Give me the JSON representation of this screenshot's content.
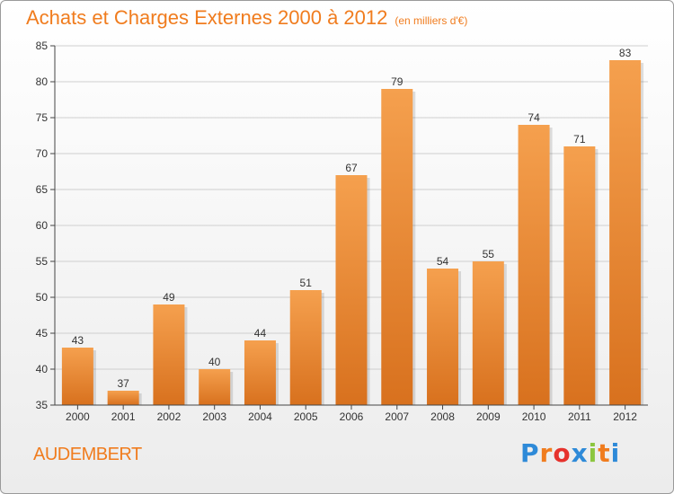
{
  "header": {
    "title": "Achats et Charges Externes 2000 à 2012",
    "subtitle": "(en milliers d'€)"
  },
  "place": "AUDEMBERT",
  "logo": {
    "text": "Proxiti",
    "colors": [
      "#2e8ad8",
      "#f07c1e",
      "#e6322c",
      "#2e8ad8",
      "#8cc63f",
      "#f07c1e",
      "#2e8ad8"
    ]
  },
  "colors": {
    "accent": "#f07c1e",
    "bar_top": "#f5a04e",
    "bar_bottom": "#d8711e",
    "grid": "#cfcfcf",
    "axis": "#444444"
  },
  "chart_data": {
    "type": "bar",
    "title": "Achats et Charges Externes 2000 à 2012",
    "subtitle": "(en milliers d'€)",
    "categories": [
      "2000",
      "2001",
      "2002",
      "2003",
      "2004",
      "2005",
      "2006",
      "2007",
      "2008",
      "2009",
      "2010",
      "2011",
      "2012"
    ],
    "values": [
      43,
      37,
      49,
      40,
      44,
      51,
      67,
      79,
      54,
      55,
      74,
      71,
      83
    ],
    "ylim": [
      35,
      85
    ],
    "yticks": [
      35,
      40,
      45,
      50,
      55,
      60,
      65,
      70,
      75,
      80,
      85
    ],
    "grid": true,
    "data_labels": true
  }
}
